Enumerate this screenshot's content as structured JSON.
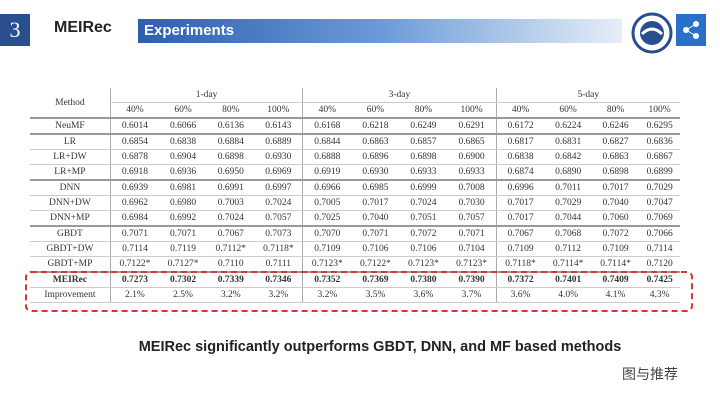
{
  "header": {
    "number": "3",
    "short_title": "MEIRec",
    "section": "Experiments"
  },
  "table": {
    "group_header": [
      "Method",
      "1-day",
      "3-day",
      "5-day"
    ],
    "sub_header": [
      "40%",
      "60%",
      "80%",
      "100%",
      "40%",
      "60%",
      "80%",
      "100%",
      "40%",
      "60%",
      "80%",
      "100%"
    ],
    "rows": [
      [
        "NeuMF",
        "0.6014",
        "0.6066",
        "0.6136",
        "0.6143",
        "0.6168",
        "0.6218",
        "0.6249",
        "0.6291",
        "0.6172",
        "0.6224",
        "0.6246",
        "0.6295"
      ],
      [
        "LR",
        "0.6854",
        "0.6838",
        "0.6884",
        "0.6889",
        "0.6844",
        "0.6863",
        "0.6857",
        "0.6865",
        "0.6817",
        "0.6831",
        "0.6827",
        "0.6836"
      ],
      [
        "LR+DW",
        "0.6878",
        "0.6904",
        "0.6898",
        "0.6930",
        "0.6888",
        "0.6896",
        "0.6898",
        "0.6900",
        "0.6838",
        "0.6842",
        "0.6863",
        "0.6867"
      ],
      [
        "LR+MP",
        "0.6918",
        "0.6936",
        "0.6950",
        "0.6969",
        "0.6919",
        "0.6930",
        "0.6933",
        "0.6933",
        "0.6874",
        "0.6890",
        "0.6898",
        "0.6899"
      ],
      [
        "DNN",
        "0.6939",
        "0.6981",
        "0.6991",
        "0.6997",
        "0.6966",
        "0.6985",
        "0.6999",
        "0.7008",
        "0.6996",
        "0.7011",
        "0.7017",
        "0.7029"
      ],
      [
        "DNN+DW",
        "0.6962",
        "0.6980",
        "0.7003",
        "0.7024",
        "0.7005",
        "0.7017",
        "0.7024",
        "0.7030",
        "0.7017",
        "0.7029",
        "0.7040",
        "0.7047"
      ],
      [
        "DNN+MP",
        "0.6984",
        "0.6992",
        "0.7024",
        "0.7057",
        "0.7025",
        "0.7040",
        "0.7051",
        "0.7057",
        "0.7017",
        "0.7044",
        "0.7060",
        "0.7069"
      ],
      [
        "GBDT",
        "0.7071",
        "0.7071",
        "0.7067",
        "0.7073",
        "0.7070",
        "0.7071",
        "0.7072",
        "0.7071",
        "0.7067",
        "0.7068",
        "0.7072",
        "0.7066"
      ],
      [
        "GBDT+DW",
        "0.7114",
        "0.7119",
        "0.7112*",
        "0.7118*",
        "0.7109",
        "0.7106",
        "0.7106",
        "0.7104",
        "0.7109",
        "0.7112",
        "0.7109",
        "0.7114"
      ],
      [
        "GBDT+MP",
        "0.7122*",
        "0.7127*",
        "0.7110",
        "0.7111",
        "0.7123*",
        "0.7122*",
        "0.7123*",
        "0.7123*",
        "0.7118*",
        "0.7114*",
        "0.7114*",
        "0.7120"
      ],
      [
        "MEIRec",
        "0.7273",
        "0.7302",
        "0.7339",
        "0.7346",
        "0.7352",
        "0.7369",
        "0.7380",
        "0.7390",
        "0.7372",
        "0.7401",
        "0.7409",
        "0.7425"
      ],
      [
        "Improvement",
        "2.1%",
        "2.5%",
        "3.2%",
        "3.2%",
        "3.2%",
        "3.5%",
        "3.6%",
        "3.7%",
        "3.6%",
        "4.0%",
        "4.1%",
        "4.3%"
      ]
    ]
  },
  "caption": "MEIRec significantly outperforms GBDT, DNN, and MF based methods",
  "watermark": "图与推荐"
}
